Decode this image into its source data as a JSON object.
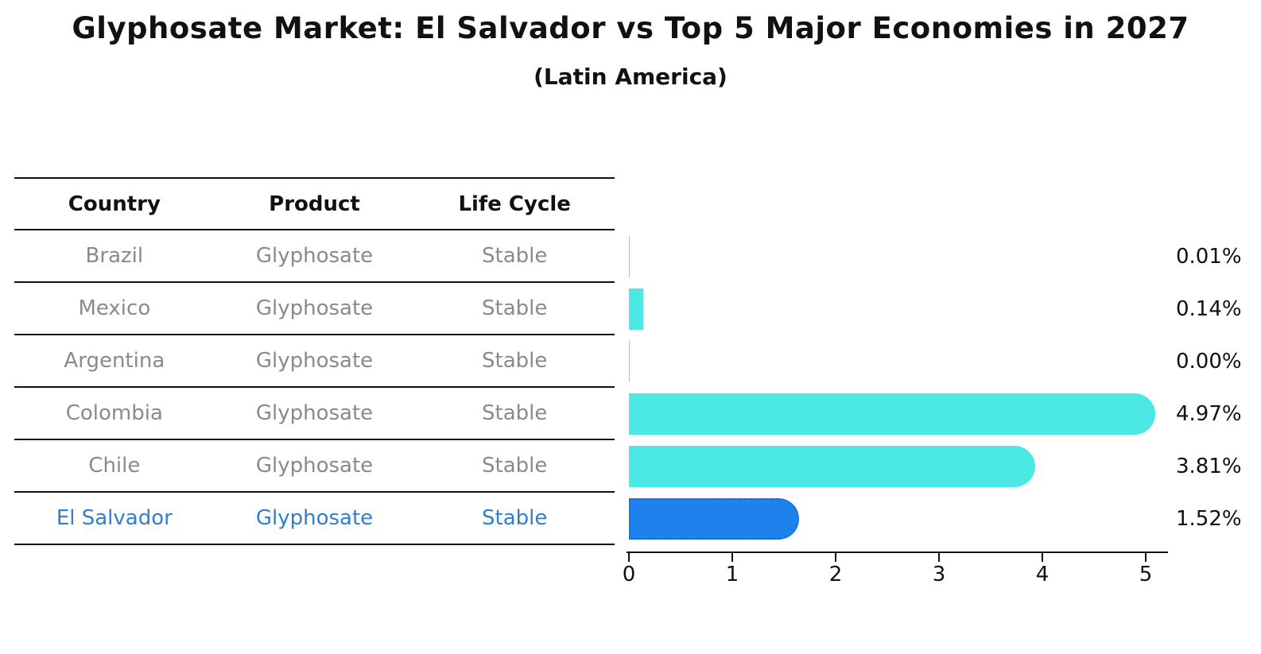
{
  "title": "Glyphosate Market: El Salvador vs Top 5 Major Economies in 2027",
  "subtitle": "(Latin America)",
  "table": {
    "headers": [
      "Country",
      "Product",
      "Life Cycle"
    ],
    "rows": [
      {
        "country": "Brazil",
        "product": "Glyphosate",
        "life_cycle": "Stable",
        "value": 0.01,
        "value_label": "0.01%",
        "highlight": false
      },
      {
        "country": "Mexico",
        "product": "Glyphosate",
        "life_cycle": "Stable",
        "value": 0.14,
        "value_label": "0.14%",
        "highlight": false
      },
      {
        "country": "Argentina",
        "product": "Glyphosate",
        "life_cycle": "Stable",
        "value": 0.0,
        "value_label": "0.00%",
        "highlight": false
      },
      {
        "country": "Colombia",
        "product": "Glyphosate",
        "life_cycle": "Stable",
        "value": 4.97,
        "value_label": "4.97%",
        "highlight": false
      },
      {
        "country": "Chile",
        "product": "Glyphosate",
        "life_cycle": "Stable",
        "value": 3.81,
        "value_label": "3.81%",
        "highlight": false
      },
      {
        "country": "El Salvador",
        "product": "Glyphosate",
        "life_cycle": "Stable",
        "value": 1.52,
        "value_label": "1.52%",
        "highlight": true
      }
    ]
  },
  "chart_data": {
    "type": "bar",
    "orientation": "horizontal",
    "title": "Glyphosate Market: El Salvador vs Top 5 Major Economies in 2027",
    "subtitle": "(Latin America)",
    "categories": [
      "Brazil",
      "Mexico",
      "Argentina",
      "Colombia",
      "Chile",
      "El Salvador"
    ],
    "values": [
      0.01,
      0.14,
      0.0,
      4.97,
      3.81,
      1.52
    ],
    "value_labels": [
      "0.01%",
      "0.14%",
      "0.00%",
      "4.97%",
      "3.81%",
      "1.52%"
    ],
    "xlabel": "",
    "ylabel": "",
    "xlim": [
      0,
      5.2
    ],
    "xticks": [
      0,
      1,
      2,
      3,
      4,
      5
    ],
    "grid": false,
    "legend": false,
    "highlight_index": 5,
    "bar_color": "#4BE8E4",
    "highlight_bar_color": "#1E82EC",
    "highlight_border_color": "#1565D6",
    "highlight_text_color": "#2E7FD0",
    "axis_color": "#111111",
    "table_text_color": "#8a8a8a"
  }
}
